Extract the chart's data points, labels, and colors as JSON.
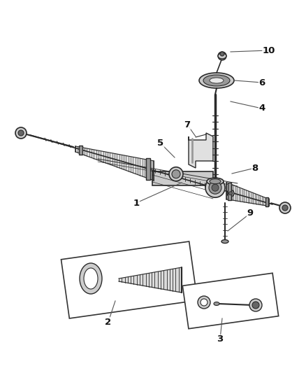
{
  "bg_color": "#ffffff",
  "fig_width": 4.38,
  "fig_height": 5.33,
  "dpi": 100,
  "line_color": "#2a2a2a",
  "gray_light": "#cccccc",
  "gray_mid": "#999999",
  "gray_dark": "#666666",
  "callout_color": "#555555"
}
